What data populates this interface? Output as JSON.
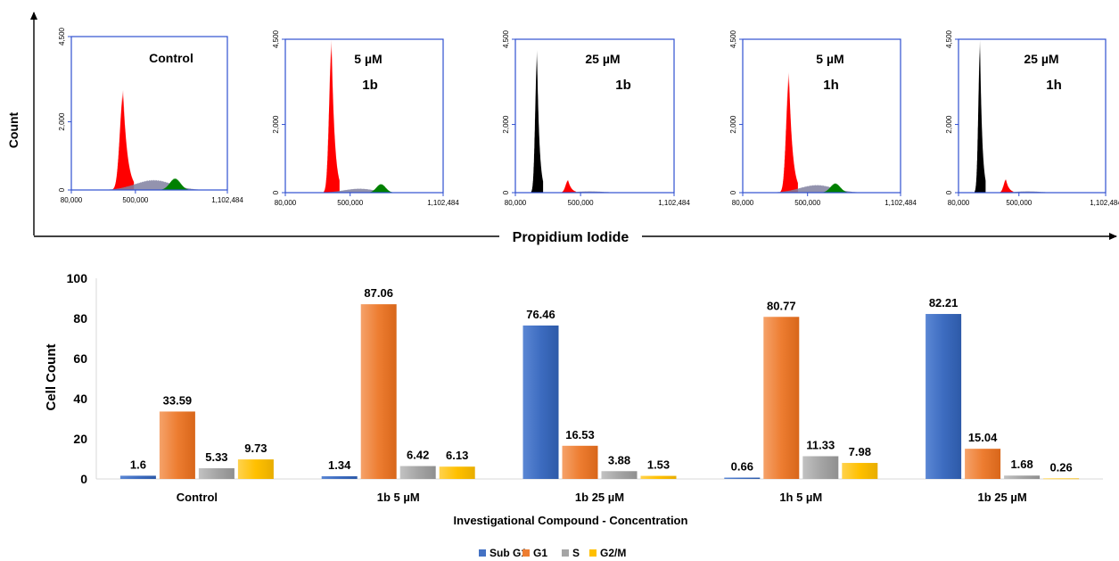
{
  "top": {
    "y_axis_label": "Count",
    "x_axis_label": "Propidium Iodide"
  },
  "chart_data": [
    {
      "type": "area",
      "title": "Control",
      "subtitle": "",
      "x_ticks": [
        "80,000",
        "500,000",
        "1,102,484"
      ],
      "y_ticks": [
        "0",
        "2,000",
        "4,500"
      ],
      "xlim": [
        80000,
        1102484
      ],
      "ylim": [
        0,
        4500
      ],
      "peaks": [
        {
          "phase": "G1",
          "color": "#ff0000",
          "center": 420000,
          "height": 2950,
          "width": 22000
        },
        {
          "phase": "S",
          "color": "#8080a0",
          "center": 620000,
          "height": 300,
          "width": 120000
        },
        {
          "phase": "G2/M",
          "color": "#008000",
          "center": 760000,
          "height": 350,
          "width": 35000
        }
      ]
    },
    {
      "type": "area",
      "title": "5 µM",
      "subtitle": "1b",
      "x_ticks": [
        "80,000",
        "500,000",
        "1,102,484"
      ],
      "y_ticks": [
        "0",
        "2,000",
        "4,500"
      ],
      "xlim": [
        80000,
        1102484
      ],
      "ylim": [
        0,
        4500
      ],
      "peaks": [
        {
          "phase": "G1",
          "color": "#ff0000",
          "center": 380000,
          "height": 4500,
          "width": 16000
        },
        {
          "phase": "S",
          "color": "#8080a0",
          "center": 560000,
          "height": 120,
          "width": 100000
        },
        {
          "phase": "G2/M",
          "color": "#008000",
          "center": 700000,
          "height": 260,
          "width": 30000
        }
      ]
    },
    {
      "type": "area",
      "title": "25 µM",
      "subtitle": "1b",
      "x_ticks": [
        "80,000",
        "500,000",
        "1,102,484"
      ],
      "y_ticks": [
        "0",
        "2,000",
        "4,500"
      ],
      "xlim": [
        80000,
        1102484
      ],
      "ylim": [
        0,
        4500
      ],
      "peaks": [
        {
          "phase": "Sub G1",
          "color": "#000000",
          "center": 220000,
          "height": 4200,
          "width": 12000
        },
        {
          "phase": "G1",
          "color": "#ff0000",
          "center": 420000,
          "height": 380,
          "width": 16000
        },
        {
          "phase": "S",
          "color": "#8080a0",
          "center": 560000,
          "height": 40,
          "width": 90000
        }
      ]
    },
    {
      "type": "area",
      "title": "5 µM",
      "subtitle": "1h",
      "x_ticks": [
        "80,000",
        "500,000",
        "1,102,484"
      ],
      "y_ticks": [
        "0",
        "2,000",
        "4,500"
      ],
      "xlim": [
        80000,
        1102484
      ],
      "ylim": [
        0,
        4500
      ],
      "peaks": [
        {
          "phase": "G1",
          "color": "#ff0000",
          "center": 380000,
          "height": 3550,
          "width": 18000
        },
        {
          "phase": "S",
          "color": "#8080a0",
          "center": 560000,
          "height": 230,
          "width": 110000
        },
        {
          "phase": "G2/M",
          "color": "#008000",
          "center": 680000,
          "height": 280,
          "width": 32000
        }
      ]
    },
    {
      "type": "area",
      "title": "25 µM",
      "subtitle": "1h",
      "x_ticks": [
        "80,000",
        "500,000",
        "1,102,484"
      ],
      "y_ticks": [
        "0",
        "2,000",
        "4,500"
      ],
      "xlim": [
        80000,
        1102484
      ],
      "ylim": [
        0,
        4500
      ],
      "peaks": [
        {
          "phase": "Sub G1",
          "color": "#000000",
          "center": 230000,
          "height": 4500,
          "width": 12000
        },
        {
          "phase": "G1",
          "color": "#ff0000",
          "center": 410000,
          "height": 400,
          "width": 16000
        },
        {
          "phase": "S",
          "color": "#8080a0",
          "center": 560000,
          "height": 40,
          "width": 90000
        }
      ]
    },
    {
      "type": "bar",
      "title": "",
      "xlabel": "Investigational Compound - Concentration",
      "ylabel": "Cell Count",
      "ylim": [
        0,
        100
      ],
      "y_ticks": [
        0,
        20,
        40,
        60,
        80,
        100
      ],
      "grid": false,
      "legend": "bottom",
      "categories": [
        "Control",
        "1b 5 µM",
        "1b 25 µM",
        "1h 5 µM",
        "1b 25 µM"
      ],
      "series": [
        {
          "name": "Sub G1",
          "color": "#4472c4",
          "values": [
            1.6,
            1.34,
            76.46,
            0.66,
            82.21
          ],
          "labels": [
            "1.6",
            "1.34",
            "76.46",
            "0.66",
            "82.21"
          ]
        },
        {
          "name": "G1",
          "color": "#ed7d31",
          "values": [
            33.59,
            87.06,
            16.53,
            80.77,
            15.04
          ],
          "labels": [
            "33.59",
            "87.06",
            "16.53",
            "80.77",
            "15.04"
          ]
        },
        {
          "name": "S",
          "color": "#a5a5a5",
          "values": [
            5.33,
            6.42,
            3.88,
            11.33,
            1.68
          ],
          "labels": [
            "5.33",
            "6.42",
            "3.88",
            "11.33",
            "1.68"
          ]
        },
        {
          "name": "G2/M",
          "color": "#ffc000",
          "values": [
            9.73,
            6.13,
            1.53,
            7.98,
            0.26
          ],
          "labels": [
            "9.73",
            "6.13",
            "1.53",
            "7.98",
            "0.26"
          ]
        }
      ]
    }
  ]
}
